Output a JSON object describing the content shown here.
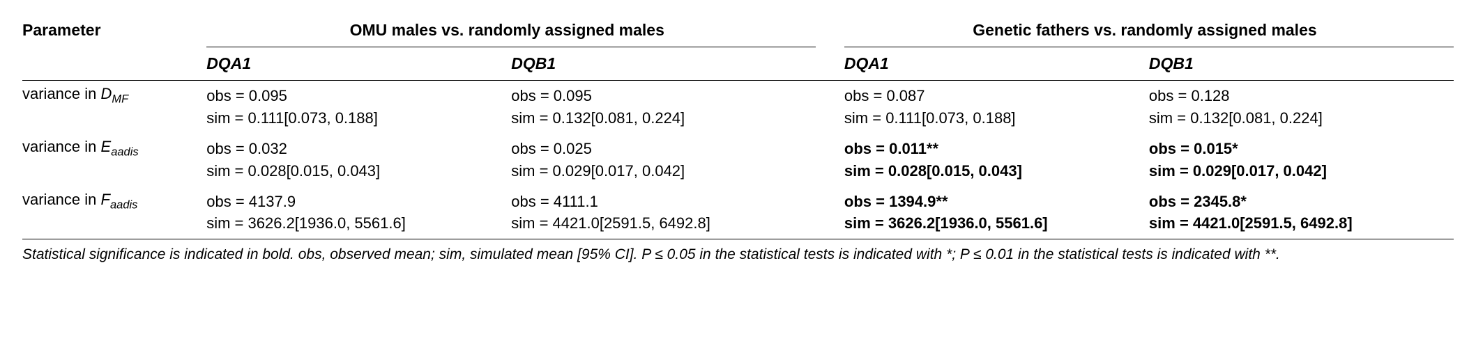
{
  "header": {
    "parameter": "Parameter",
    "group1": "OMU males vs. randomly assigned males",
    "group2": "Genetic fathers vs. randomly assigned males",
    "locus": {
      "dqa1": "DQA1",
      "dqb1": "DQB1"
    }
  },
  "rows": [
    {
      "param_html": "variance in <span class=\"sub\">D<sub>MF</sub></span>",
      "g1_dqa1": {
        "obs": "obs = 0.095",
        "sim": "sim = 0.111[0.073, 0.188]",
        "bold": false
      },
      "g1_dqb1": {
        "obs": "obs = 0.095",
        "sim": "sim = 0.132[0.081, 0.224]",
        "bold": false
      },
      "g2_dqa1": {
        "obs": "obs = 0.087",
        "sim": "sim = 0.111[0.073, 0.188]",
        "bold": false
      },
      "g2_dqb1": {
        "obs": "obs = 0.128",
        "sim": "sim = 0.132[0.081, 0.224]",
        "bold": false
      }
    },
    {
      "param_html": "variance in <span class=\"sub\">E<sub>aadis</sub></span>",
      "g1_dqa1": {
        "obs": "obs = 0.032",
        "sim": "sim = 0.028[0.015, 0.043]",
        "bold": false
      },
      "g1_dqb1": {
        "obs": "obs = 0.025",
        "sim": "sim = 0.029[0.017, 0.042]",
        "bold": false
      },
      "g2_dqa1": {
        "obs": "obs = 0.011**",
        "sim": "sim = 0.028[0.015, 0.043]",
        "bold": true
      },
      "g2_dqb1": {
        "obs": "obs = 0.015*",
        "sim": "sim = 0.029[0.017, 0.042]",
        "bold": true
      }
    },
    {
      "param_html": "variance in <span class=\"sub\">F<sub>aadis</sub></span>",
      "g1_dqa1": {
        "obs": "obs = 4137.9",
        "sim": "sim = 3626.2[1936.0, 5561.6]",
        "bold": false
      },
      "g1_dqb1": {
        "obs": "obs = 4111.1",
        "sim": "sim = 4421.0[2591.5, 6492.8]",
        "bold": false
      },
      "g2_dqa1": {
        "obs": "obs = 1394.9**",
        "sim": "sim = 3626.2[1936.0, 5561.6]",
        "bold": true
      },
      "g2_dqb1": {
        "obs": "obs = 2345.8*",
        "sim": "sim = 4421.0[2591.5, 6492.8]",
        "bold": true
      }
    }
  ],
  "footnote": "Statistical significance is indicated in bold. obs, observed mean; sim, simulated mean [95% CI]. P ≤ 0.05 in the statistical tests is indicated with *; P ≤ 0.01 in the statistical tests is indicated with **."
}
